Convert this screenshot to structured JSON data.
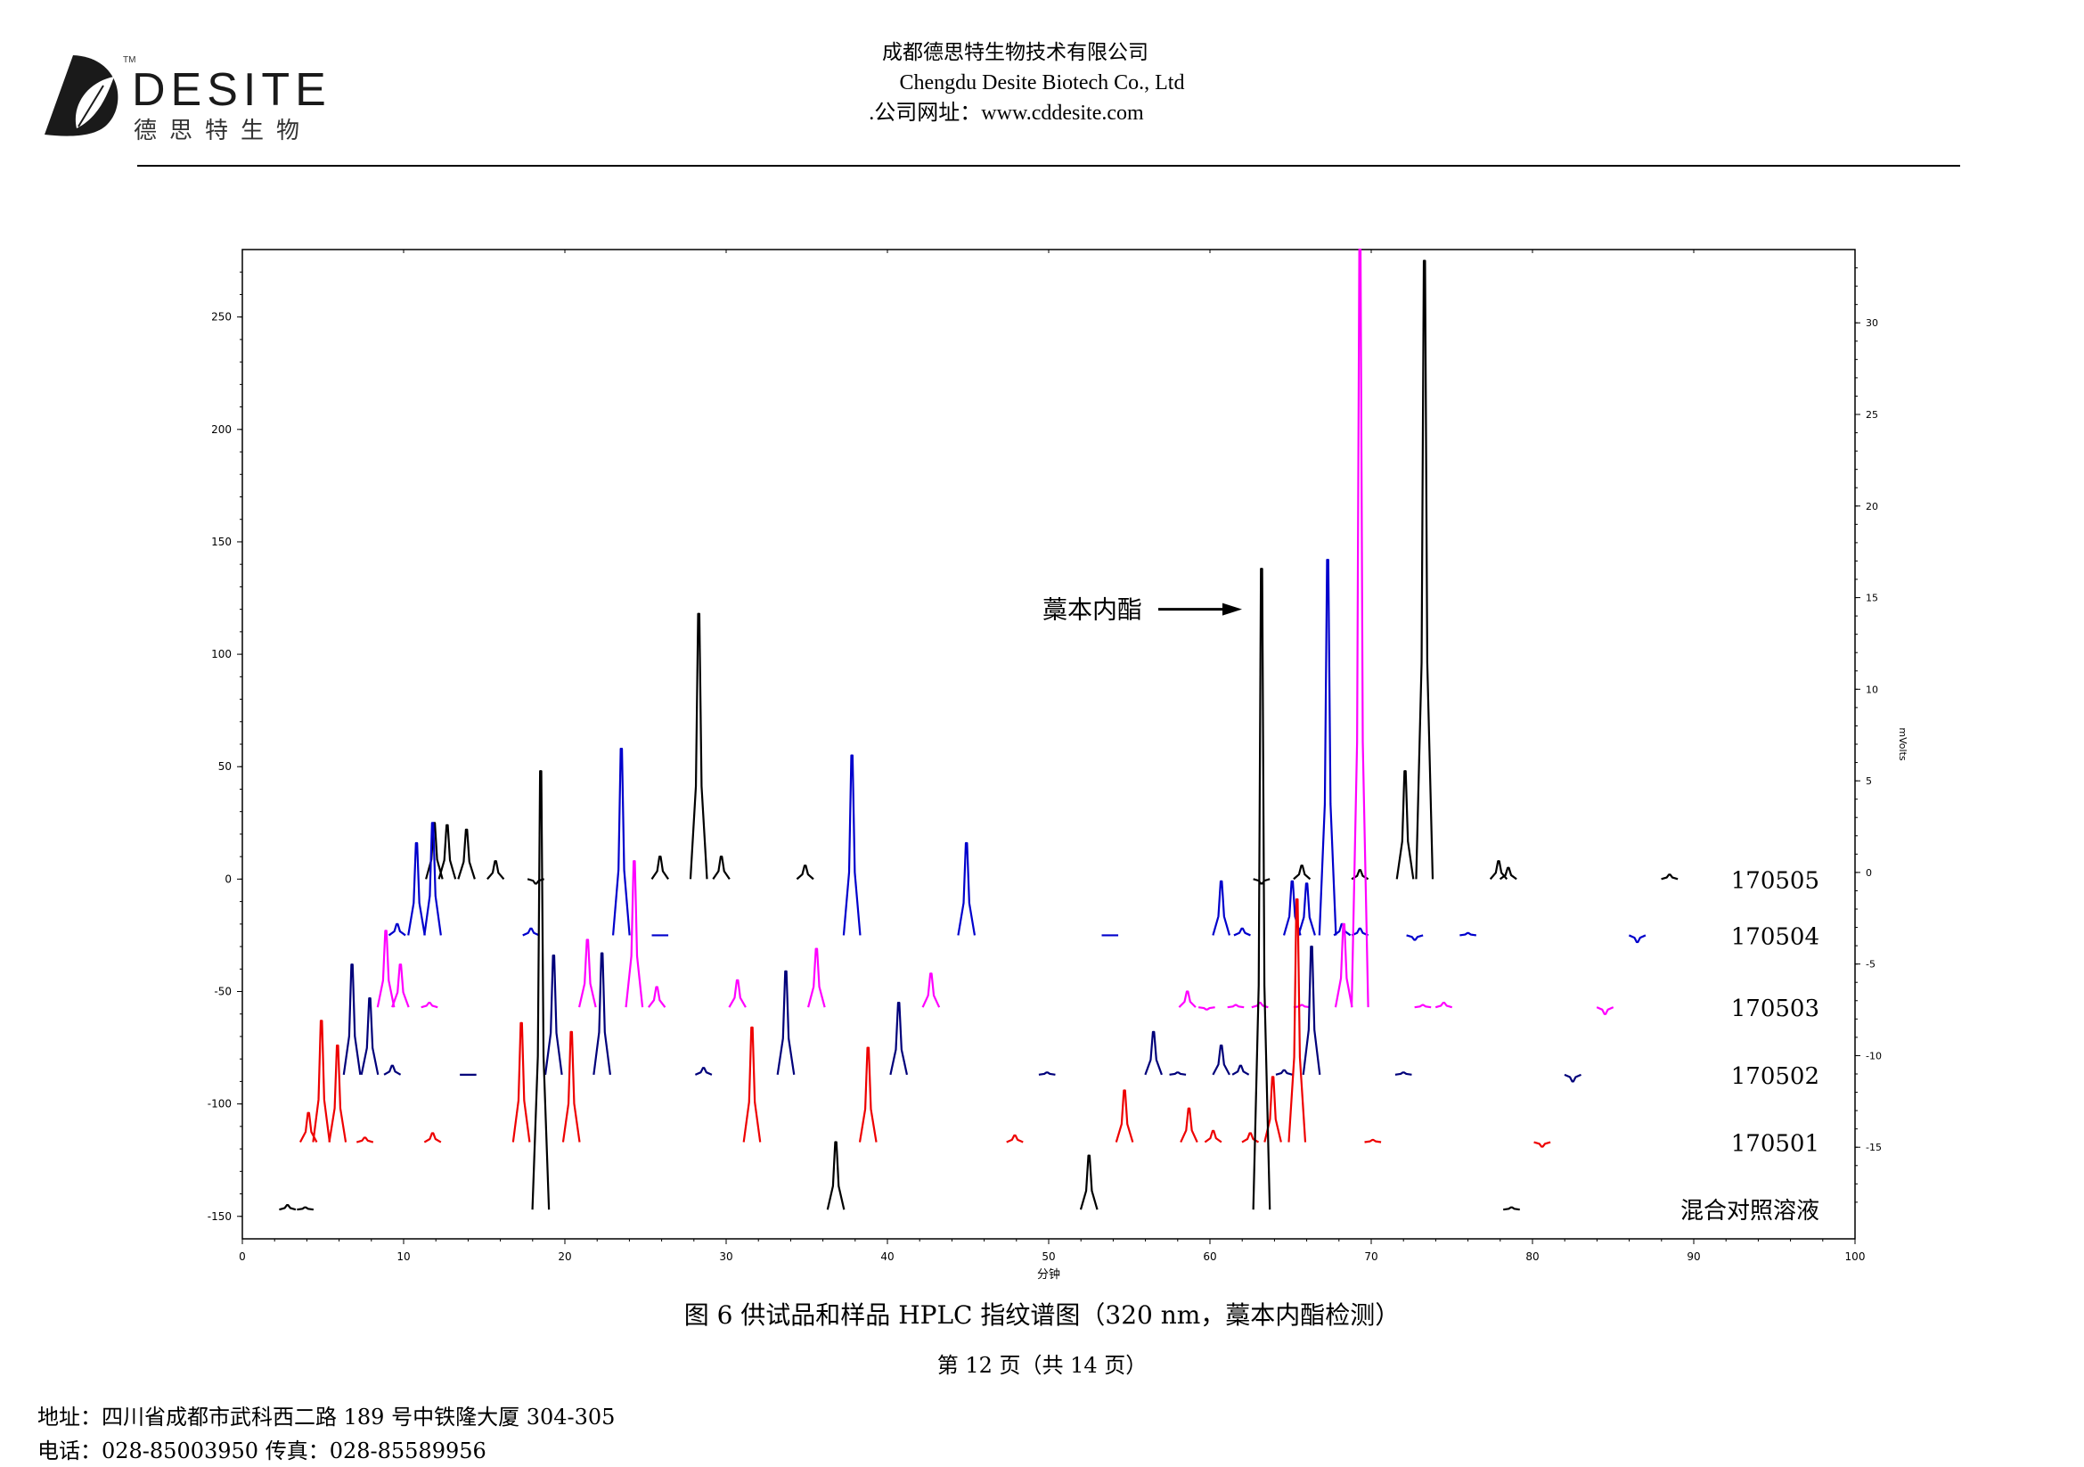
{
  "header": {
    "logo_text": "DESITE",
    "logo_cn": "德思特生物",
    "logo_tm": "TM",
    "company_cn": "成都德思特生物技术有限公司",
    "company_en": "Chengdu Desite Biotech Co., Ltd",
    "website": ".公司网址：www.cddesite.com"
  },
  "caption": "图 6  供试品和样品 HPLC 指纹谱图（320 nm，藁本内酯检测）",
  "page_number": "第 12 页（共 14 页）",
  "footer": {
    "address": "地址：四川省成都市武科西二路 189 号中铁隆大厦 304-305",
    "contact": "电话：028-85003950    传真：028-85589956"
  },
  "colors": {
    "black": "#000000",
    "blue": "#0000cc",
    "magenta": "#ff00ff",
    "navy": "#00007a",
    "red": "#ee0000"
  },
  "chart_data": {
    "type": "line",
    "title": "",
    "xlabel": "分钟",
    "ylabel_right": "mVolts",
    "xlim": [
      0,
      100
    ],
    "ylim_left": [
      -160,
      280
    ],
    "ylim_right": [
      -20,
      34
    ],
    "x_ticks": [
      0,
      10,
      20,
      30,
      40,
      50,
      60,
      70,
      80,
      90,
      100
    ],
    "y_ticks_left": [
      250,
      200,
      150,
      100,
      50,
      0,
      -50,
      -100,
      -150
    ],
    "y_ticks_right": [
      30,
      25,
      20,
      15,
      10,
      5,
      0,
      -5,
      -10,
      -15
    ],
    "annotation": {
      "text": "藁本内酯",
      "x": 63.2,
      "y": 120
    },
    "series": [
      {
        "name": "170505",
        "color": "black",
        "baseline": 0,
        "peaks": [
          [
            11.9,
            25
          ],
          [
            12.7,
            24
          ],
          [
            13.9,
            22
          ],
          [
            15.7,
            8
          ],
          [
            18.2,
            -2
          ],
          [
            25.9,
            10
          ],
          [
            28.3,
            118
          ],
          [
            29.7,
            10
          ],
          [
            34.9,
            6
          ],
          [
            63.2,
            -2
          ],
          [
            65.7,
            6
          ],
          [
            69.3,
            4
          ],
          [
            72.1,
            48
          ],
          [
            73.3,
            275
          ],
          [
            77.9,
            8
          ],
          [
            78.5,
            5
          ],
          [
            88.5,
            2
          ]
        ]
      },
      {
        "name": "170504",
        "color": "blue",
        "baseline": -25,
        "peaks": [
          [
            9.6,
            -20
          ],
          [
            10.8,
            16
          ],
          [
            11.8,
            25
          ],
          [
            17.9,
            -22
          ],
          [
            23.5,
            58
          ],
          [
            25.9,
            -25
          ],
          [
            37.8,
            55
          ],
          [
            44.9,
            16
          ],
          [
            53.8,
            -25
          ],
          [
            60.7,
            -1
          ],
          [
            62.0,
            -22
          ],
          [
            65.1,
            -1
          ],
          [
            66.0,
            -2
          ],
          [
            67.3,
            142
          ],
          [
            68.2,
            -20
          ],
          [
            69.3,
            -22
          ],
          [
            72.7,
            -27
          ],
          [
            76.0,
            -24
          ],
          [
            86.5,
            -28
          ]
        ]
      },
      {
        "name": "170503",
        "color": "magenta",
        "baseline": -57,
        "peaks": [
          [
            8.9,
            -23
          ],
          [
            9.8,
            -38
          ],
          [
            11.6,
            -55
          ],
          [
            21.4,
            -27
          ],
          [
            24.3,
            8
          ],
          [
            25.7,
            -48
          ],
          [
            30.7,
            -45
          ],
          [
            35.6,
            -31
          ],
          [
            42.7,
            -42
          ],
          [
            58.6,
            -50
          ],
          [
            59.8,
            -58
          ],
          [
            61.6,
            -56
          ],
          [
            63.1,
            -55
          ],
          [
            65.7,
            -56
          ],
          [
            68.3,
            -20
          ],
          [
            69.3,
            280
          ],
          [
            73.2,
            -56
          ],
          [
            74.5,
            -55
          ],
          [
            84.5,
            -60
          ]
        ]
      },
      {
        "name": "170502",
        "color": "navy",
        "baseline": -87,
        "peaks": [
          [
            6.8,
            -38
          ],
          [
            7.9,
            -53
          ],
          [
            9.3,
            -83
          ],
          [
            14.0,
            -87
          ],
          [
            19.3,
            -34
          ],
          [
            22.3,
            -33
          ],
          [
            28.6,
            -84
          ],
          [
            33.7,
            -41
          ],
          [
            40.7,
            -55
          ],
          [
            49.9,
            -86
          ],
          [
            56.5,
            -68
          ],
          [
            58.0,
            -86
          ],
          [
            60.7,
            -74
          ],
          [
            61.9,
            -83
          ],
          [
            64.6,
            -85
          ],
          [
            66.3,
            -30
          ],
          [
            72.0,
            -86
          ],
          [
            82.5,
            -90
          ]
        ]
      },
      {
        "name": "170501",
        "color": "red",
        "baseline": -117,
        "peaks": [
          [
            4.1,
            -104
          ],
          [
            4.9,
            -63
          ],
          [
            5.9,
            -74
          ],
          [
            7.6,
            -115
          ],
          [
            11.8,
            -113
          ],
          [
            17.3,
            -64
          ],
          [
            20.4,
            -68
          ],
          [
            31.6,
            -66
          ],
          [
            38.8,
            -75
          ],
          [
            47.9,
            -114
          ],
          [
            54.7,
            -94
          ],
          [
            58.7,
            -102
          ],
          [
            60.2,
            -112
          ],
          [
            62.5,
            -113
          ],
          [
            63.9,
            -88
          ],
          [
            65.4,
            -9
          ],
          [
            70.1,
            -116
          ],
          [
            80.6,
            -119
          ]
        ]
      },
      {
        "name": "混合对照溶液",
        "color": "black",
        "baseline": -147,
        "peaks": [
          [
            2.8,
            -145
          ],
          [
            3.9,
            -146
          ],
          [
            18.5,
            48
          ],
          [
            36.8,
            -117
          ],
          [
            52.5,
            -123
          ],
          [
            63.2,
            138
          ],
          [
            78.7,
            -146
          ]
        ]
      }
    ]
  }
}
